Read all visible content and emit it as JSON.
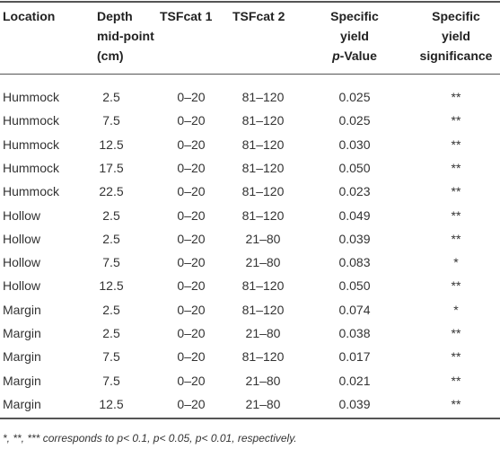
{
  "table": {
    "header": [
      [
        "Location"
      ],
      [
        "Depth",
        "mid-point",
        "(cm)"
      ],
      [
        "TSFcat 1"
      ],
      [
        "TSFcat 2"
      ],
      [
        "Specific",
        "yield",
        [
          "p",
          "-Value"
        ]
      ],
      [
        "Specific",
        "yield",
        "significance"
      ]
    ],
    "rows": [
      [
        "Hummock",
        "2.5",
        "0–20",
        "81–120",
        "0.025",
        "**"
      ],
      [
        "Hummock",
        "7.5",
        "0–20",
        "81–120",
        "0.025",
        "**"
      ],
      [
        "Hummock",
        "12.5",
        "0–20",
        "81–120",
        "0.030",
        "**"
      ],
      [
        "Hummock",
        "17.5",
        "0–20",
        "81–120",
        "0.050",
        "**"
      ],
      [
        "Hummock",
        "22.5",
        "0–20",
        "81–120",
        "0.023",
        "**"
      ],
      [
        "Hollow",
        "2.5",
        "0–20",
        "81–120",
        "0.049",
        "**"
      ],
      [
        "Hollow",
        "2.5",
        "0–20",
        "21–80",
        "0.039",
        "**"
      ],
      [
        "Hollow",
        "7.5",
        "0–20",
        "21–80",
        "0.083",
        "*"
      ],
      [
        "Hollow",
        "12.5",
        "0–20",
        "81–120",
        "0.050",
        "**"
      ],
      [
        "Margin",
        "2.5",
        "0–20",
        "81–120",
        "0.074",
        "*"
      ],
      [
        "Margin",
        "2.5",
        "0–20",
        "21–80",
        "0.038",
        "**"
      ],
      [
        "Margin",
        "7.5",
        "0–20",
        "81–120",
        "0.017",
        "**"
      ],
      [
        "Margin",
        "7.5",
        "0–20",
        "21–80",
        "0.021",
        "**"
      ],
      [
        "Margin",
        "12.5",
        "0–20",
        "21–80",
        "0.039",
        "**"
      ]
    ],
    "footnote": "*, **, *** corresponds to p< 0.1, p< 0.05, p< 0.01, respectively."
  }
}
